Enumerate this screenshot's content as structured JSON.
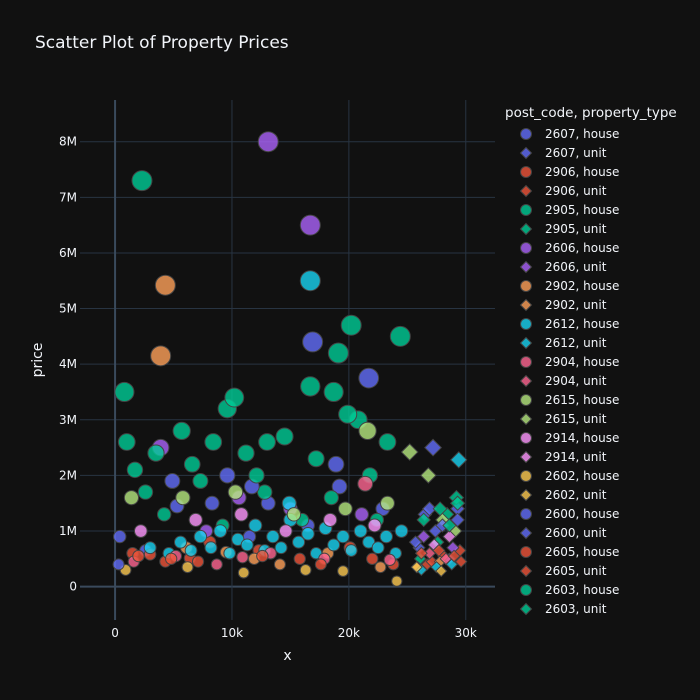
{
  "chart_data": {
    "type": "scatter",
    "title": "Scatter Plot of Property Prices",
    "xlabel": "x",
    "ylabel": "price",
    "xlim": [
      -3000,
      32500
    ],
    "ylim": [
      -600000,
      8750000
    ],
    "x_ticks": [
      0,
      10000,
      20000,
      30000
    ],
    "x_tick_labels": [
      "0",
      "10k",
      "20k",
      "30k"
    ],
    "y_ticks": [
      0,
      1000000,
      2000000,
      3000000,
      4000000,
      5000000,
      6000000,
      7000000,
      8000000
    ],
    "y_tick_labels": [
      "0",
      "1M",
      "2M",
      "3M",
      "4M",
      "5M",
      "6M",
      "7M",
      "8M"
    ],
    "grid": true,
    "legend_title": "post_code, property_type",
    "legend_position": "right",
    "series": [
      {
        "name": "2607, house",
        "color": "#636efa",
        "symbol": "circle",
        "points": [
          [
            400,
            900000
          ],
          [
            5300,
            1450000
          ],
          [
            9600,
            2000000
          ],
          [
            13100,
            1500000
          ],
          [
            16500,
            1100000
          ],
          [
            19200,
            1800000
          ],
          [
            22900,
            1400000
          ],
          [
            2600,
            650000
          ],
          [
            11500,
            900000
          ]
        ]
      },
      {
        "name": "2607, unit",
        "color": "#636efa",
        "symbol": "diamond",
        "points": [
          [
            26000,
            700000
          ],
          [
            27400,
            1000000
          ],
          [
            28600,
            500000
          ],
          [
            29300,
            1400000
          ]
        ]
      },
      {
        "name": "2906, house",
        "color": "#ef553b",
        "symbol": "circle",
        "points": [
          [
            1500,
            600000
          ],
          [
            4300,
            450000
          ],
          [
            8100,
            800000
          ],
          [
            12300,
            650000
          ],
          [
            15800,
            500000
          ],
          [
            20100,
            700000
          ],
          [
            23800,
            400000
          ],
          [
            3000,
            580000
          ],
          [
            6400,
            510000
          ]
        ]
      },
      {
        "name": "2906, unit",
        "color": "#ef553b",
        "symbol": "diamond",
        "points": [
          [
            26700,
            400000
          ],
          [
            28100,
            550000
          ],
          [
            29500,
            650000
          ],
          [
            27100,
            450000
          ]
        ]
      },
      {
        "name": "2905, house",
        "color": "#00cc96",
        "symbol": "circle",
        "points": [
          [
            2300,
            7300000
          ],
          [
            20200,
            4700000
          ],
          [
            24400,
            4500000
          ],
          [
            19100,
            4200000
          ],
          [
            800,
            3500000
          ],
          [
            9600,
            3200000
          ],
          [
            14500,
            2700000
          ],
          [
            20800,
            3000000
          ],
          [
            17200,
            2300000
          ],
          [
            5700,
            2800000
          ],
          [
            11200,
            2400000
          ],
          [
            2600,
            1700000
          ],
          [
            7300,
            1900000
          ],
          [
            21800,
            2000000
          ],
          [
            16000,
            1200000
          ],
          [
            22400,
            1200000
          ],
          [
            12800,
            1700000
          ],
          [
            18500,
            1600000
          ],
          [
            4200,
            1300000
          ],
          [
            9200,
            1100000
          ]
        ]
      },
      {
        "name": "2905, unit",
        "color": "#00cc96",
        "symbol": "diamond",
        "points": [
          [
            26100,
            500000
          ],
          [
            27600,
            800000
          ],
          [
            29200,
            1600000
          ],
          [
            28400,
            1300000
          ]
        ]
      },
      {
        "name": "2606, house",
        "color": "#ab63fa",
        "symbol": "circle",
        "points": [
          [
            13100,
            8000000
          ],
          [
            16700,
            6500000
          ],
          [
            3900,
            2500000
          ],
          [
            15000,
            1400000
          ],
          [
            21100,
            1300000
          ],
          [
            7800,
            1000000
          ],
          [
            10600,
            1600000
          ]
        ]
      },
      {
        "name": "2606, unit",
        "color": "#ab63fa",
        "symbol": "diamond",
        "points": [
          [
            26400,
            900000
          ],
          [
            28900,
            700000
          ]
        ]
      },
      {
        "name": "2902, house",
        "color": "#ffa15a",
        "symbol": "circle",
        "points": [
          [
            4300,
            5420000
          ],
          [
            3900,
            4150000
          ],
          [
            6100,
            700000
          ],
          [
            11900,
            500000
          ],
          [
            18200,
            600000
          ],
          [
            22700,
            350000
          ],
          [
            14100,
            400000
          ],
          [
            9500,
            620000
          ]
        ]
      },
      {
        "name": "2902, unit",
        "color": "#ffa15a",
        "symbol": "diamond",
        "points": [
          [
            25900,
            350000
          ],
          [
            27800,
            450000
          ]
        ]
      },
      {
        "name": "2612, house",
        "color": "#19d3f3",
        "symbol": "circle",
        "points": [
          [
            3000,
            700000
          ],
          [
            4600,
            600000
          ],
          [
            5600,
            800000
          ],
          [
            6500,
            650000
          ],
          [
            7300,
            900000
          ],
          [
            8200,
            700000
          ],
          [
            9000,
            1000000
          ],
          [
            9800,
            600000
          ],
          [
            10500,
            850000
          ],
          [
            11300,
            750000
          ],
          [
            12000,
            1100000
          ],
          [
            12800,
            650000
          ],
          [
            13500,
            900000
          ],
          [
            14200,
            700000
          ],
          [
            15000,
            1200000
          ],
          [
            15700,
            800000
          ],
          [
            16500,
            950000
          ],
          [
            17200,
            600000
          ],
          [
            18000,
            1050000
          ],
          [
            18700,
            750000
          ],
          [
            19500,
            900000
          ],
          [
            20200,
            650000
          ],
          [
            21000,
            1000000
          ],
          [
            21700,
            800000
          ],
          [
            22500,
            700000
          ],
          [
            23200,
            900000
          ],
          [
            24000,
            600000
          ],
          [
            24500,
            1000000
          ],
          [
            16700,
            5500000
          ],
          [
            14900,
            1500000
          ]
        ]
      },
      {
        "name": "2612, unit",
        "color": "#19d3f3",
        "symbol": "diamond",
        "points": [
          [
            29400,
            2280000
          ],
          [
            26200,
            300000
          ],
          [
            27500,
            350000
          ],
          [
            28800,
            400000
          ]
        ]
      },
      {
        "name": "2904, house",
        "color": "#ff6692",
        "symbol": "circle",
        "points": [
          [
            1600,
            450000
          ],
          [
            5200,
            550000
          ],
          [
            8700,
            400000
          ],
          [
            13300,
            600000
          ],
          [
            17900,
            500000
          ],
          [
            21400,
            1850000
          ],
          [
            23500,
            480000
          ],
          [
            10900,
            530000
          ]
        ]
      },
      {
        "name": "2904, unit",
        "color": "#ff6692",
        "symbol": "diamond",
        "points": [
          [
            26900,
            600000
          ],
          [
            28300,
            500000
          ]
        ]
      },
      {
        "name": "2615, house",
        "color": "#b6e880",
        "symbol": "circle",
        "points": [
          [
            1400,
            1600000
          ],
          [
            5800,
            1600000
          ],
          [
            10300,
            1700000
          ],
          [
            15300,
            1300000
          ],
          [
            19700,
            1400000
          ],
          [
            23300,
            1500000
          ],
          [
            21600,
            2800000
          ]
        ]
      },
      {
        "name": "2615, unit",
        "color": "#b6e880",
        "symbol": "diamond",
        "points": [
          [
            25200,
            2420000
          ],
          [
            26800,
            2000000
          ],
          [
            28000,
            1200000
          ],
          [
            29100,
            1000000
          ]
        ]
      },
      {
        "name": "2914, house",
        "color": "#ff97ff",
        "symbol": "circle",
        "points": [
          [
            2200,
            1000000
          ],
          [
            6900,
            1200000
          ],
          [
            10800,
            1300000
          ],
          [
            14600,
            1000000
          ],
          [
            18400,
            1200000
          ],
          [
            22200,
            1100000
          ]
        ]
      },
      {
        "name": "2914, unit",
        "color": "#ff97ff",
        "symbol": "diamond",
        "points": [
          [
            27300,
            750000
          ],
          [
            28600,
            900000
          ]
        ]
      },
      {
        "name": "2602, house",
        "color": "#fecb52",
        "symbol": "circle",
        "points": [
          [
            900,
            300000
          ],
          [
            6200,
            350000
          ],
          [
            11000,
            250000
          ],
          [
            16300,
            300000
          ],
          [
            24100,
            100000
          ],
          [
            19500,
            280000
          ]
        ]
      },
      {
        "name": "2602, unit",
        "color": "#fecb52",
        "symbol": "diamond",
        "points": [
          [
            25800,
            350000
          ],
          [
            27900,
            280000
          ]
        ]
      },
      {
        "name": "2600, house",
        "color": "#636efa",
        "symbol": "circle",
        "points": [
          [
            300,
            400000
          ],
          [
            4900,
            1900000
          ],
          [
            11700,
            1800000
          ],
          [
            16900,
            4400000
          ],
          [
            21700,
            3750000
          ],
          [
            18900,
            2200000
          ],
          [
            8300,
            1500000
          ]
        ]
      },
      {
        "name": "2600, unit",
        "color": "#636efa",
        "symbol": "diamond",
        "points": [
          [
            27200,
            2500000
          ],
          [
            26500,
            1300000
          ],
          [
            28000,
            1100000
          ],
          [
            29300,
            1200000
          ],
          [
            25700,
            800000
          ],
          [
            26900,
            1400000
          ]
        ]
      },
      {
        "name": "2605, house",
        "color": "#ef553b",
        "symbol": "circle",
        "points": [
          [
            2000,
            550000
          ],
          [
            7100,
            450000
          ],
          [
            12600,
            550000
          ],
          [
            17600,
            400000
          ],
          [
            22000,
            500000
          ],
          [
            4800,
            500000
          ]
        ]
      },
      {
        "name": "2605, unit",
        "color": "#ef553b",
        "symbol": "diamond",
        "points": [
          [
            26200,
            600000
          ],
          [
            27700,
            650000
          ],
          [
            29000,
            550000
          ],
          [
            29600,
            450000
          ]
        ]
      },
      {
        "name": "2603, house",
        "color": "#00cc96",
        "symbol": "circle",
        "points": [
          [
            1000,
            2600000
          ],
          [
            3500,
            2400000
          ],
          [
            8400,
            2600000
          ],
          [
            13000,
            2600000
          ],
          [
            16700,
            3600000
          ],
          [
            18700,
            3500000
          ],
          [
            23300,
            2600000
          ],
          [
            19900,
            3100000
          ],
          [
            10200,
            3400000
          ],
          [
            1700,
            2100000
          ],
          [
            6600,
            2200000
          ],
          [
            12100,
            2000000
          ]
        ]
      },
      {
        "name": "2603, unit",
        "color": "#00cc96",
        "symbol": "diamond",
        "points": [
          [
            26400,
            1200000
          ],
          [
            27800,
            1400000
          ],
          [
            29300,
            1500000
          ],
          [
            28600,
            1100000
          ]
        ]
      }
    ]
  }
}
